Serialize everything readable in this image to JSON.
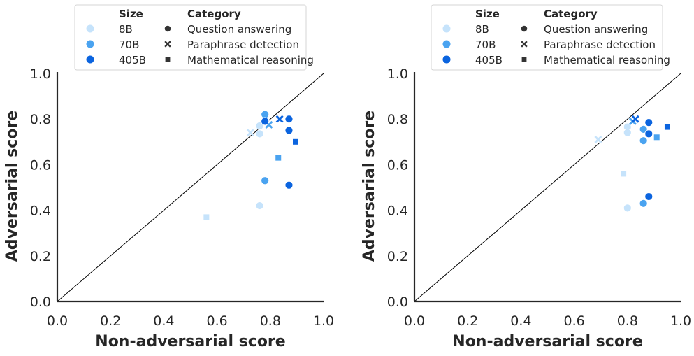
{
  "colors": {
    "8B": "#c6e3fb",
    "70B": "#4aa3f0",
    "405B": "#0b64df",
    "legend_marker": "#333333",
    "axis": "#262626"
  },
  "legend": {
    "size_title": "Size",
    "category_title": "Category",
    "sizes": [
      "8B",
      "70B",
      "405B"
    ],
    "categories": [
      {
        "name": "Question answering",
        "marker": "circle"
      },
      {
        "name": "Paraphrase detection",
        "marker": "x"
      },
      {
        "name": "Mathematical reasoning",
        "marker": "square"
      }
    ]
  },
  "chart_data": [
    {
      "type": "scatter",
      "xlabel": "Non-adversarial score",
      "ylabel": "Adversarial score",
      "xlim": [
        0,
        1
      ],
      "ylim": [
        0,
        1
      ],
      "xticks": [
        "0.0",
        "0.2",
        "0.4",
        "0.6",
        "0.8",
        "1.0"
      ],
      "yticks": [
        "0.0",
        "0.2",
        "0.4",
        "0.6",
        "0.8",
        "1.0"
      ],
      "diagonal": true,
      "grid": false,
      "legend_position": "top",
      "points": [
        {
          "x": 0.76,
          "y": 0.77,
          "size": "8B",
          "category": "Question answering"
        },
        {
          "x": 0.76,
          "y": 0.735,
          "size": "8B",
          "category": "Question answering"
        },
        {
          "x": 0.76,
          "y": 0.42,
          "size": "8B",
          "category": "Question answering"
        },
        {
          "x": 0.725,
          "y": 0.74,
          "size": "8B",
          "category": "Paraphrase detection"
        },
        {
          "x": 0.56,
          "y": 0.37,
          "size": "8B",
          "category": "Mathematical reasoning"
        },
        {
          "x": 0.78,
          "y": 0.82,
          "size": "70B",
          "category": "Question answering"
        },
        {
          "x": 0.78,
          "y": 0.53,
          "size": "70B",
          "category": "Question answering"
        },
        {
          "x": 0.795,
          "y": 0.775,
          "size": "70B",
          "category": "Paraphrase detection"
        },
        {
          "x": 0.83,
          "y": 0.63,
          "size": "70B",
          "category": "Mathematical reasoning"
        },
        {
          "x": 0.78,
          "y": 0.79,
          "size": "405B",
          "category": "Question answering"
        },
        {
          "x": 0.87,
          "y": 0.8,
          "size": "405B",
          "category": "Question answering"
        },
        {
          "x": 0.87,
          "y": 0.75,
          "size": "405B",
          "category": "Question answering"
        },
        {
          "x": 0.87,
          "y": 0.51,
          "size": "405B",
          "category": "Question answering"
        },
        {
          "x": 0.835,
          "y": 0.8,
          "size": "405B",
          "category": "Paraphrase detection"
        },
        {
          "x": 0.895,
          "y": 0.7,
          "size": "405B",
          "category": "Mathematical reasoning"
        }
      ]
    },
    {
      "type": "scatter",
      "xlabel": "Non-adversarial score",
      "ylabel": "Adversarial score",
      "xlim": [
        0,
        1
      ],
      "ylim": [
        0,
        1
      ],
      "xticks": [
        "0.0",
        "0.2",
        "0.4",
        "0.6",
        "0.8",
        "1.0"
      ],
      "yticks": [
        "0.0",
        "0.2",
        "0.4",
        "0.6",
        "0.8",
        "1.0"
      ],
      "diagonal": true,
      "grid": false,
      "legend_position": "top",
      "points": [
        {
          "x": 0.8,
          "y": 0.765,
          "size": "8B",
          "category": "Question answering"
        },
        {
          "x": 0.8,
          "y": 0.74,
          "size": "8B",
          "category": "Question answering"
        },
        {
          "x": 0.8,
          "y": 0.41,
          "size": "8B",
          "category": "Question answering"
        },
        {
          "x": 0.69,
          "y": 0.71,
          "size": "8B",
          "category": "Paraphrase detection"
        },
        {
          "x": 0.785,
          "y": 0.56,
          "size": "8B",
          "category": "Mathematical reasoning"
        },
        {
          "x": 0.86,
          "y": 0.755,
          "size": "70B",
          "category": "Question answering"
        },
        {
          "x": 0.86,
          "y": 0.705,
          "size": "70B",
          "category": "Question answering"
        },
        {
          "x": 0.86,
          "y": 0.43,
          "size": "70B",
          "category": "Question answering"
        },
        {
          "x": 0.82,
          "y": 0.79,
          "size": "70B",
          "category": "Paraphrase detection"
        },
        {
          "x": 0.91,
          "y": 0.72,
          "size": "70B",
          "category": "Mathematical reasoning"
        },
        {
          "x": 0.88,
          "y": 0.785,
          "size": "405B",
          "category": "Question answering"
        },
        {
          "x": 0.88,
          "y": 0.735,
          "size": "405B",
          "category": "Question answering"
        },
        {
          "x": 0.88,
          "y": 0.46,
          "size": "405B",
          "category": "Question answering"
        },
        {
          "x": 0.83,
          "y": 0.8,
          "size": "405B",
          "category": "Paraphrase detection"
        },
        {
          "x": 0.95,
          "y": 0.765,
          "size": "405B",
          "category": "Mathematical reasoning"
        }
      ]
    }
  ]
}
